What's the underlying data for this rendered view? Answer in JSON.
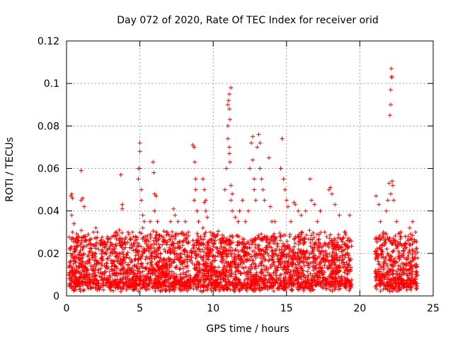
{
  "chart_data": {
    "type": "scatter",
    "title": "Day 072 of 2020, Rate Of TEC Index for receiver orid",
    "xlabel": "GPS time / hours",
    "ylabel": "ROTI / TECUs",
    "xlim": [
      0,
      25
    ],
    "ylim": [
      0,
      0.12
    ],
    "xticks": [
      0,
      5,
      10,
      15,
      20,
      25
    ],
    "xtick_labels": [
      "0",
      "5",
      "10",
      "15",
      "20",
      "25"
    ],
    "yticks": [
      0,
      0.02,
      0.04,
      0.06,
      0.08,
      0.1,
      0.12
    ],
    "ytick_labels": [
      "0",
      "0.02",
      "0.04",
      "0.06",
      "0.08",
      "0.1",
      "0.12"
    ],
    "grid": true,
    "marker": "plus",
    "color": "#ff0000",
    "series": [
      {
        "name": "ROTI",
        "points": [
          [
            0.3,
            0.047
          ],
          [
            0.35,
            0.048
          ],
          [
            0.4,
            0.046
          ],
          [
            0.4,
            0.03
          ],
          [
            0.35,
            0.038
          ],
          [
            0.45,
            0.027
          ],
          [
            0.5,
            0.034
          ],
          [
            0.55,
            0.022
          ],
          [
            1.0,
            0.059
          ],
          [
            1.0,
            0.045
          ],
          [
            1.1,
            0.046
          ],
          [
            1.2,
            0.042
          ],
          [
            1.2,
            0.028
          ],
          [
            1.0,
            0.025
          ],
          [
            2.0,
            0.032
          ],
          [
            2.1,
            0.03
          ],
          [
            2.3,
            0.026
          ],
          [
            2.5,
            0.024
          ],
          [
            2.8,
            0.022
          ],
          [
            3.0,
            0.025
          ],
          [
            3.4,
            0.03
          ],
          [
            3.6,
            0.031
          ],
          [
            3.7,
            0.057
          ],
          [
            3.8,
            0.043
          ],
          [
            3.8,
            0.041
          ],
          [
            4.2,
            0.03
          ],
          [
            4.5,
            0.03
          ],
          [
            4.7,
            0.028
          ],
          [
            4.9,
            0.06
          ],
          [
            5.0,
            0.072
          ],
          [
            5.0,
            0.068
          ],
          [
            5.0,
            0.06
          ],
          [
            4.9,
            0.055
          ],
          [
            5.1,
            0.05
          ],
          [
            5.1,
            0.045
          ],
          [
            5.2,
            0.038
          ],
          [
            5.3,
            0.035
          ],
          [
            5.2,
            0.032
          ],
          [
            5.4,
            0.026
          ],
          [
            5.7,
            0.035
          ],
          [
            5.9,
            0.063
          ],
          [
            5.95,
            0.058
          ],
          [
            6.0,
            0.048
          ],
          [
            6.1,
            0.047
          ],
          [
            6.0,
            0.04
          ],
          [
            6.2,
            0.035
          ],
          [
            6.1,
            0.03
          ],
          [
            6.5,
            0.028
          ],
          [
            6.8,
            0.03
          ],
          [
            7.1,
            0.035
          ],
          [
            7.3,
            0.041
          ],
          [
            7.4,
            0.038
          ],
          [
            7.6,
            0.035
          ],
          [
            7.9,
            0.03
          ],
          [
            8.1,
            0.035
          ],
          [
            8.3,
            0.03
          ],
          [
            8.6,
            0.071
          ],
          [
            8.7,
            0.07
          ],
          [
            8.75,
            0.063
          ],
          [
            8.8,
            0.055
          ],
          [
            8.8,
            0.05
          ],
          [
            8.7,
            0.045
          ],
          [
            8.9,
            0.04
          ],
          [
            9.0,
            0.035
          ],
          [
            9.3,
            0.055
          ],
          [
            9.4,
            0.05
          ],
          [
            9.5,
            0.045
          ],
          [
            9.4,
            0.044
          ],
          [
            9.5,
            0.04
          ],
          [
            9.6,
            0.037
          ],
          [
            9.3,
            0.032
          ],
          [
            9.8,
            0.03
          ],
          [
            10.2,
            0.028
          ],
          [
            10.5,
            0.025
          ],
          [
            10.8,
            0.05
          ],
          [
            10.9,
            0.06
          ],
          [
            11.0,
            0.074
          ],
          [
            11.0,
            0.08
          ],
          [
            11.0,
            0.09
          ],
          [
            11.05,
            0.092
          ],
          [
            11.1,
            0.088
          ],
          [
            11.1,
            0.095
          ],
          [
            11.2,
            0.098
          ],
          [
            11.15,
            0.083
          ],
          [
            11.1,
            0.07
          ],
          [
            11.1,
            0.067
          ],
          [
            11.15,
            0.063
          ],
          [
            11.2,
            0.052
          ],
          [
            11.3,
            0.048
          ],
          [
            11.2,
            0.045
          ],
          [
            11.3,
            0.04
          ],
          [
            11.5,
            0.037
          ],
          [
            11.7,
            0.035
          ],
          [
            11.8,
            0.04
          ],
          [
            12.0,
            0.045
          ],
          [
            12.2,
            0.035
          ],
          [
            12.4,
            0.04
          ],
          [
            12.5,
            0.06
          ],
          [
            12.6,
            0.072
          ],
          [
            12.7,
            0.075
          ],
          [
            12.7,
            0.064
          ],
          [
            12.8,
            0.055
          ],
          [
            12.8,
            0.05
          ],
          [
            12.9,
            0.045
          ],
          [
            13.0,
            0.07
          ],
          [
            13.1,
            0.076
          ],
          [
            13.2,
            0.072
          ],
          [
            13.2,
            0.06
          ],
          [
            13.3,
            0.055
          ],
          [
            13.4,
            0.05
          ],
          [
            13.5,
            0.045
          ],
          [
            13.8,
            0.065
          ],
          [
            13.9,
            0.042
          ],
          [
            14.0,
            0.035
          ],
          [
            14.2,
            0.035
          ],
          [
            14.6,
            0.06
          ],
          [
            14.7,
            0.074
          ],
          [
            14.8,
            0.055
          ],
          [
            14.9,
            0.05
          ],
          [
            15.0,
            0.045
          ],
          [
            15.1,
            0.042
          ],
          [
            15.3,
            0.035
          ],
          [
            15.5,
            0.044
          ],
          [
            15.6,
            0.043
          ],
          [
            15.8,
            0.04
          ],
          [
            16.0,
            0.038
          ],
          [
            16.3,
            0.04
          ],
          [
            16.6,
            0.055
          ],
          [
            16.7,
            0.045
          ],
          [
            16.9,
            0.043
          ],
          [
            17.1,
            0.035
          ],
          [
            17.3,
            0.04
          ],
          [
            17.6,
            0.03
          ],
          [
            17.9,
            0.05
          ],
          [
            18.0,
            0.051
          ],
          [
            18.1,
            0.048
          ],
          [
            18.3,
            0.043
          ],
          [
            18.6,
            0.038
          ],
          [
            19.0,
            0.03
          ],
          [
            19.3,
            0.038
          ],
          [
            21.1,
            0.047
          ],
          [
            21.3,
            0.043
          ],
          [
            21.4,
            0.035
          ],
          [
            21.6,
            0.03
          ],
          [
            21.8,
            0.04
          ],
          [
            21.9,
            0.045
          ],
          [
            22.0,
            0.053
          ],
          [
            22.1,
            0.048
          ],
          [
            22.05,
            0.085
          ],
          [
            22.1,
            0.09
          ],
          [
            22.1,
            0.097
          ],
          [
            22.15,
            0.103
          ],
          [
            22.15,
            0.107
          ],
          [
            22.2,
            0.103
          ],
          [
            22.2,
            0.054
          ],
          [
            22.25,
            0.052
          ],
          [
            22.3,
            0.045
          ],
          [
            22.5,
            0.035
          ],
          [
            22.8,
            0.03
          ],
          [
            23.1,
            0.028
          ],
          [
            23.4,
            0.032
          ],
          [
            23.6,
            0.035
          ],
          [
            23.8,
            0.03
          ]
        ],
        "dense_bands": [
          {
            "x_start": 0.15,
            "x_end": 19.45,
            "y_low": 0.002,
            "y_high": 0.027
          },
          {
            "x_start": 21.05,
            "x_end": 23.95,
            "y_low": 0.002,
            "y_high": 0.027
          }
        ]
      }
    ]
  }
}
